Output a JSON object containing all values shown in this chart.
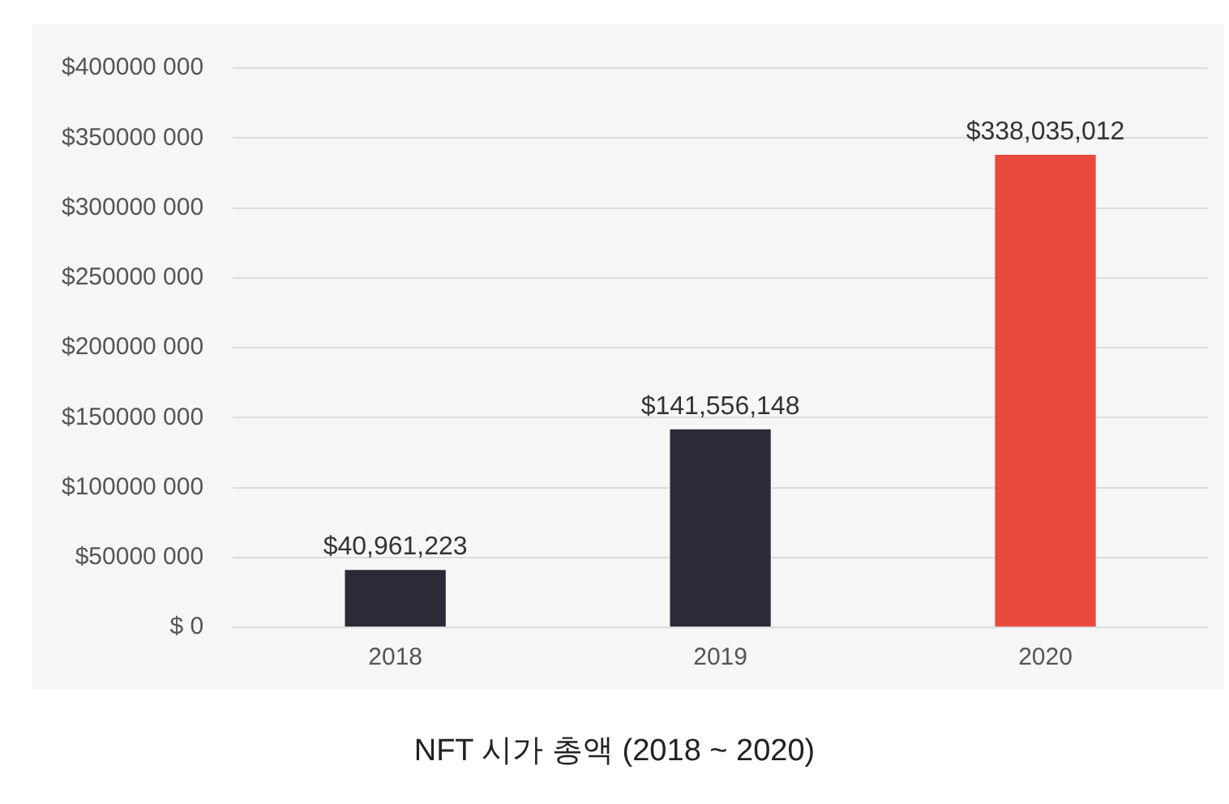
{
  "chart_data": {
    "type": "bar",
    "categories": [
      "2018",
      "2019",
      "2020"
    ],
    "values": [
      40961223,
      141556148,
      338035012
    ],
    "colors": [
      "#2b2a36",
      "#2b2a36",
      "#e84a3c"
    ],
    "value_labels": [
      "$40,961,223",
      "$141,556,148",
      "$338,035,012"
    ],
    "ylim": [
      0,
      400000000
    ],
    "yticks": [
      {
        "value": 0,
        "label": "$ 0"
      },
      {
        "value": 50000000,
        "label": "$50000 000"
      },
      {
        "value": 100000000,
        "label": "$100000 000"
      },
      {
        "value": 150000000,
        "label": "$150000 000"
      },
      {
        "value": 200000000,
        "label": "$200000 000"
      },
      {
        "value": 250000000,
        "label": "$250000 000"
      },
      {
        "value": 300000000,
        "label": "$300000 000"
      },
      {
        "value": 350000000,
        "label": "$350000 000"
      },
      {
        "value": 400000000,
        "label": "$400000 000"
      }
    ],
    "grid": "y",
    "annotations": [
      "NFT 시가 총액 (2018 ~ 2020)"
    ]
  }
}
